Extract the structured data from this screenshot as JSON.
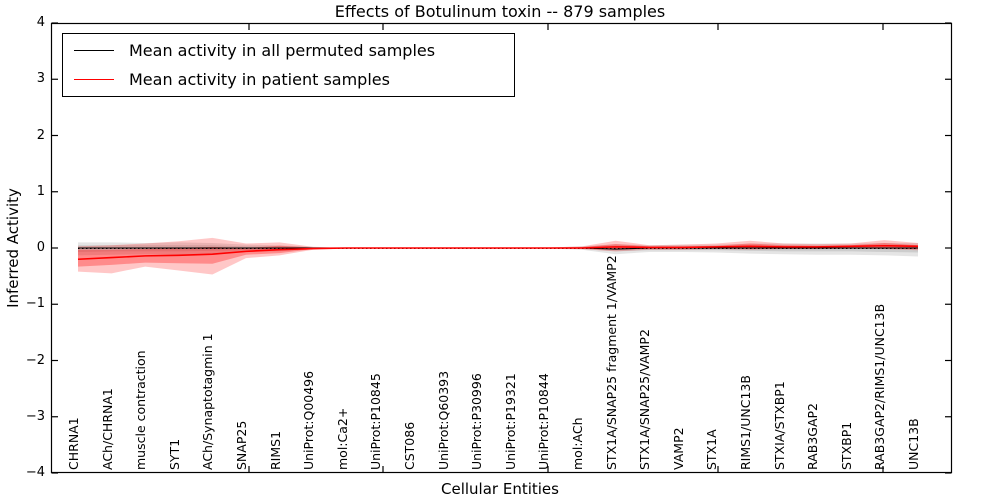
{
  "chart_data": {
    "type": "line",
    "title": "Effects of Botulinum toxin -- 879 samples",
    "xlabel": "Cellular Entities",
    "ylabel": "Inferred Activity",
    "ylim": [
      -4,
      4
    ],
    "grid": false,
    "legend_position": "upper left",
    "y_ticks": [
      {
        "value": 4,
        "label": "4"
      },
      {
        "value": 3,
        "label": "3"
      },
      {
        "value": 2,
        "label": "2"
      },
      {
        "value": 1,
        "label": "1"
      },
      {
        "value": 0,
        "label": "0"
      },
      {
        "value": -1,
        "label": "−1"
      },
      {
        "value": -2,
        "label": "−2"
      },
      {
        "value": -3,
        "label": "−3"
      },
      {
        "value": -4,
        "label": "−4"
      }
    ],
    "categories": [
      "CHRNA1",
      "ACh/CHRNA1",
      "muscle contraction",
      "SYT1",
      "ACh/Synaptotagmin 1",
      "SNAP25",
      "RIMS1",
      "UniProt:Q00496",
      "mol:Ca2+",
      "UniProt:P10845",
      "CST086",
      "UniProt:Q60393",
      "UniProt:P30996",
      "UniProt:P19321",
      "UniProt:P10844",
      "mol:ACh",
      "STX1A/SNAP25 fragment 1/VAMP2",
      "STX1A/SNAP25/VAMP2",
      "VAMP2",
      "STX1A",
      "RIMS1/UNC13B",
      "STXIA/STXBP1",
      "RAB3GAP2",
      "STXBP1",
      "RAB3GAP2/RIMS1/UNC13B",
      "UNC13B"
    ],
    "series": [
      {
        "name": "Mean activity in all permuted samples",
        "color": "#000000",
        "width": 1.1,
        "values": [
          0,
          0,
          0,
          0,
          0,
          0,
          0,
          0,
          0,
          0,
          0,
          0,
          0,
          0,
          0,
          0,
          -0.02,
          0,
          0,
          0,
          0,
          0,
          0,
          0,
          0,
          0
        ]
      },
      {
        "name": "Mean activity in patient samples",
        "color": "#ff0000",
        "width": 1.6,
        "values": [
          -0.2,
          -0.17,
          -0.14,
          -0.13,
          -0.11,
          -0.06,
          -0.03,
          -0.01,
          0,
          0,
          0,
          0,
          0,
          0,
          0,
          0,
          0.02,
          0.01,
          0.01,
          0.02,
          0.03,
          0.02,
          0.02,
          0.03,
          0.04,
          0.03
        ]
      }
    ],
    "bands": [
      {
        "name": "permuted-range-outer",
        "fill": "rgba(0,0,0,0.10)",
        "hi": [
          0.1,
          0.1,
          0.09,
          0.1,
          0.09,
          0.06,
          0.05,
          0.02,
          0.01,
          0.01,
          0.01,
          0.01,
          0.01,
          0.01,
          0.01,
          0.03,
          0.07,
          0.05,
          0.06,
          0.06,
          0.08,
          0.08,
          0.08,
          0.08,
          0.09,
          0.09
        ],
        "lo": [
          -0.13,
          -0.12,
          -0.11,
          -0.12,
          -0.1,
          -0.07,
          -0.06,
          -0.02,
          -0.01,
          -0.01,
          -0.01,
          -0.01,
          -0.01,
          -0.01,
          -0.01,
          -0.03,
          -0.11,
          -0.07,
          -0.07,
          -0.08,
          -0.1,
          -0.11,
          -0.12,
          -0.12,
          -0.13,
          -0.15
        ]
      },
      {
        "name": "permuted-std-inner",
        "fill": "rgba(0,0,0,0.10)",
        "hi": [
          0.05,
          0.05,
          0.05,
          0.05,
          0.05,
          0.03,
          0.03,
          0.01,
          0.005,
          0.005,
          0.005,
          0.005,
          0.005,
          0.005,
          0.005,
          0.015,
          0.04,
          0.03,
          0.03,
          0.03,
          0.04,
          0.04,
          0.04,
          0.04,
          0.05,
          0.05
        ],
        "lo": [
          -0.07,
          -0.06,
          -0.06,
          -0.06,
          -0.05,
          -0.04,
          -0.03,
          -0.01,
          -0.005,
          -0.005,
          -0.005,
          -0.005,
          -0.005,
          -0.005,
          -0.005,
          -0.015,
          -0.06,
          -0.04,
          -0.04,
          -0.04,
          -0.05,
          -0.06,
          -0.06,
          -0.06,
          -0.07,
          -0.08
        ]
      },
      {
        "name": "patient-range-outer",
        "fill": "rgba(255,0,0,0.22)",
        "hi": [
          0.03,
          0.05,
          0.08,
          0.12,
          0.18,
          0.08,
          0.1,
          0.02,
          0.01,
          0.01,
          0.01,
          0.01,
          0.01,
          0.01,
          0.01,
          0.03,
          0.13,
          0.05,
          0.06,
          0.08,
          0.13,
          0.08,
          0.07,
          0.08,
          0.14,
          0.09
        ],
        "lo": [
          -0.42,
          -0.45,
          -0.33,
          -0.4,
          -0.47,
          -0.18,
          -0.13,
          -0.03,
          -0.01,
          -0.01,
          -0.01,
          -0.01,
          -0.01,
          -0.01,
          -0.01,
          -0.02,
          -0.06,
          -0.03,
          -0.03,
          -0.02,
          -0.03,
          -0.02,
          -0.02,
          -0.01,
          -0.02,
          -0.04
        ]
      },
      {
        "name": "patient-std-inner",
        "fill": "rgba(255,0,0,0.30)",
        "hi": [
          -0.03,
          -0.03,
          -0.02,
          0.0,
          0.02,
          0.0,
          0.04,
          0.01,
          0.005,
          0.005,
          0.005,
          0.005,
          0.005,
          0.005,
          0.005,
          0.015,
          0.07,
          0.03,
          0.03,
          0.04,
          0.08,
          0.05,
          0.04,
          0.05,
          0.09,
          0.05
        ],
        "lo": [
          -0.33,
          -0.3,
          -0.26,
          -0.27,
          -0.28,
          -0.12,
          -0.09,
          -0.02,
          -0.005,
          -0.005,
          -0.005,
          -0.005,
          -0.005,
          -0.005,
          -0.005,
          -0.01,
          -0.03,
          -0.01,
          -0.01,
          0.0,
          -0.01,
          -0.01,
          -0.01,
          0.0,
          -0.01,
          -0.02
        ]
      }
    ],
    "zero_line": {
      "y": 0,
      "style": "dotted",
      "color": "#000000"
    }
  }
}
